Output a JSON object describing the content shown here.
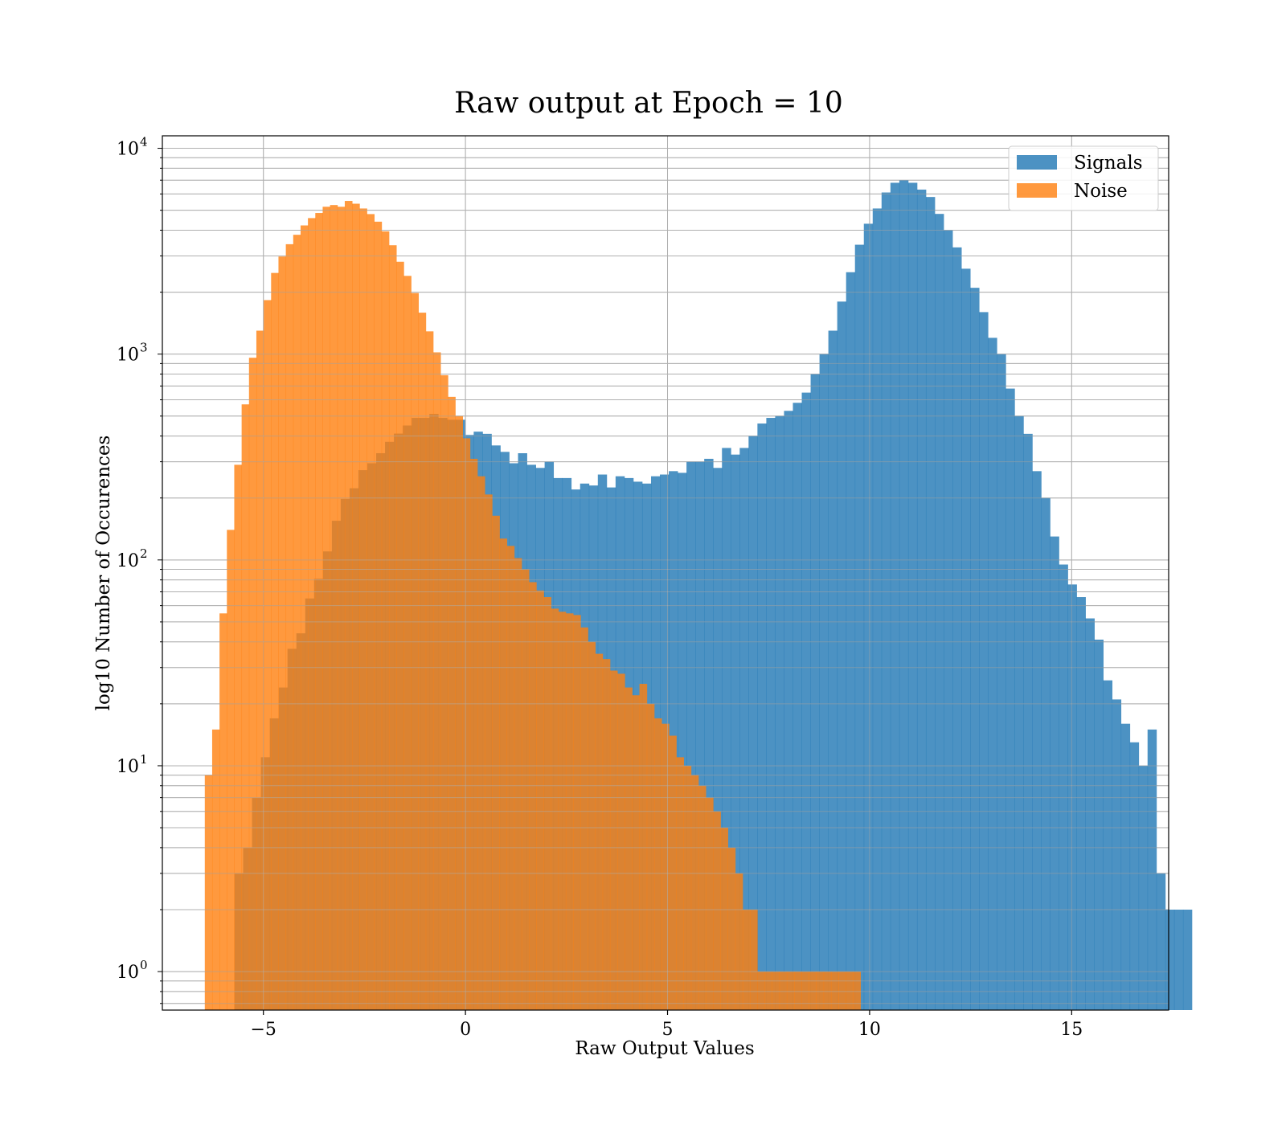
{
  "chart_data": {
    "type": "bar",
    "title": "Raw output at Epoch = 10",
    "xlabel": "Raw Output Values",
    "ylabel": "log10 Number of Occurences",
    "xlim": [
      -7.5,
      17.4
    ],
    "ylim": [
      0.65,
      11500
    ],
    "yscale": "log",
    "grid": true,
    "legend_position": "top-right",
    "x_ticks": [
      -5,
      0,
      5,
      10,
      15
    ],
    "x_tick_labels": [
      "−5",
      "0",
      "5",
      "10",
      "15"
    ],
    "y_ticks": [
      {
        "value": 1,
        "base": "10",
        "exp": "0"
      },
      {
        "value": 10,
        "base": "10",
        "exp": "1"
      },
      {
        "value": 100,
        "base": "10",
        "exp": "2"
      },
      {
        "value": 1000,
        "base": "10",
        "exp": "3"
      },
      {
        "value": 10000,
        "base": "10",
        "exp": "4"
      }
    ],
    "series": [
      {
        "name": "Signals",
        "color": "#1f77b4",
        "opacity": 0.8,
        "x_start": -5.72,
        "bin_width": 0.2194,
        "values": [
          3,
          4,
          7,
          11,
          17,
          24,
          37,
          44,
          65,
          81,
          110,
          155,
          198,
          223,
          273,
          295,
          330,
          375,
          411,
          450,
          490,
          490,
          512,
          490,
          480,
          480,
          405,
          420,
          410,
          360,
          335,
          295,
          330,
          290,
          280,
          300,
          250,
          250,
          220,
          235,
          230,
          260,
          225,
          255,
          250,
          240,
          235,
          255,
          260,
          270,
          265,
          300,
          300,
          310,
          280,
          350,
          325,
          350,
          400,
          460,
          490,
          500,
          530,
          580,
          650,
          800,
          1000,
          1300,
          1800,
          2500,
          3400,
          4300,
          5100,
          6100,
          6800,
          7000,
          6800,
          6300,
          5800,
          4800,
          4000,
          3300,
          2600,
          2100,
          1600,
          1200,
          1000,
          680,
          500,
          410,
          270,
          200,
          130,
          95,
          76,
          66,
          52,
          41,
          26,
          21,
          16,
          13,
          10,
          15,
          3,
          2,
          2,
          2
        ],
        "gaps": [
          {
            "start": 3.3,
            "end": 3.6
          },
          {
            "start": 5.95,
            "end": 6.15
          },
          {
            "start": 13.72,
            "end": 13.84
          }
        ]
      },
      {
        "name": "Noise",
        "color": "#ff7f0e",
        "opacity": 0.8,
        "x_start": -6.45,
        "bin_width": 0.1823,
        "values": [
          9,
          15,
          55,
          140,
          290,
          570,
          960,
          1300,
          1830,
          2480,
          2980,
          3420,
          3800,
          4220,
          4580,
          4850,
          5200,
          5300,
          5200,
          5550,
          5380,
          5100,
          4790,
          4400,
          3950,
          3380,
          2810,
          2400,
          1980,
          1590,
          1290,
          1020,
          790,
          620,
          500,
          390,
          310,
          255,
          208,
          164,
          127,
          117,
          102,
          90,
          78,
          71,
          66,
          58,
          56,
          55,
          54,
          47,
          40,
          35,
          33,
          29,
          28,
          24,
          22,
          25,
          20,
          17,
          16,
          14,
          11,
          10,
          9,
          8,
          7,
          6,
          5,
          4,
          3,
          2,
          2,
          1,
          1,
          1,
          1,
          1,
          1,
          1,
          1,
          1,
          1,
          1,
          1,
          1,
          1
        ],
        "gaps": [
          {
            "start": -2.7,
            "end": -2.6
          },
          {
            "start": 0.8,
            "end": 0.9
          },
          {
            "start": 3.25,
            "end": 3.3
          },
          {
            "start": 4.3,
            "end": 4.35
          }
        ]
      }
    ]
  }
}
